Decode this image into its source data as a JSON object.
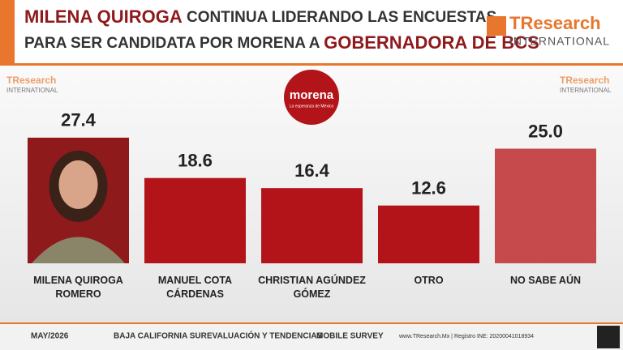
{
  "header": {
    "title_bold": "MILENA QUIROGA",
    "title_rest": "CONTINUA LIDERANDO LAS ENCUESTAS",
    "title_line2": "PARA SER CANDIDATA POR MORENA A",
    "title_bold2": "GOBERNADORA DE BCS"
  },
  "brand": {
    "name": "TResearch",
    "sub": "INTERNATIONAL"
  },
  "party": {
    "name": "morena",
    "slogan": "La esperanza de México"
  },
  "chart_data": {
    "type": "bar",
    "categories": [
      "MILENA QUIROGA ROMERO",
      "MANUEL COTA CÁRDENAS",
      "CHRISTIAN AGÚNDEZ GÓMEZ",
      "OTRO",
      "NO SABE AÚN"
    ],
    "values": [
      27.4,
      18.6,
      16.4,
      12.6,
      25.0
    ],
    "value_labels": [
      "27.4",
      "18.6",
      "16.4",
      "12.6",
      "25.0"
    ],
    "colors": [
      "#8e1a1c",
      "#b3141a",
      "#b3141a",
      "#b3141a",
      "#c64a4c"
    ]
  },
  "footer": {
    "date": "MAY/2026",
    "region": "BAJA CALIFORNIA SUR",
    "topic": "EVALUACIÓN Y TENDENCIAS",
    "method": "MOBILE SURVEY",
    "site": "www.TResearch.Mx | Registro INE: 20200041018934"
  }
}
